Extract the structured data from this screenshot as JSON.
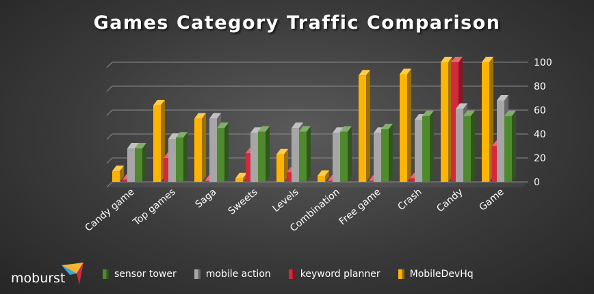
{
  "brand": {
    "logo_text": "moburst"
  },
  "colors": {
    "sensor tower": "#4f8a2e",
    "mobile action": "#a6a6a6",
    "keyword planner": "#d6283c",
    "MobileDevHq": "#ffb400"
  },
  "chart_data": {
    "type": "bar",
    "title": "Games Category Traffic Comparison",
    "xlabel": "",
    "ylabel": "",
    "ylim": [
      0,
      100
    ],
    "yticks": [
      0,
      20,
      40,
      60,
      80,
      100
    ],
    "grid": true,
    "legend_position": "bottom",
    "categories": [
      "Candy game",
      "Top games",
      "Saga",
      "Sweets",
      "Levels",
      "Combination",
      "Free game",
      "Crash",
      "Candy",
      "Game"
    ],
    "series": [
      {
        "name": "MobileDevHq",
        "values": [
          9,
          64,
          53,
          3,
          23,
          5,
          89,
          90,
          100,
          100
        ]
      },
      {
        "name": "keyword planner",
        "values": [
          2,
          20,
          0,
          24,
          8,
          1,
          1,
          3,
          100,
          30
        ]
      },
      {
        "name": "mobile action",
        "values": [
          28,
          36,
          53,
          41,
          45,
          41,
          41,
          52,
          61,
          68
        ]
      },
      {
        "name": "sensor tower",
        "values": [
          28,
          37,
          45,
          42,
          42,
          42,
          44,
          55,
          55,
          55
        ]
      }
    ],
    "legend_order": [
      "sensor tower",
      "mobile action",
      "keyword planner",
      "MobileDevHq"
    ]
  }
}
